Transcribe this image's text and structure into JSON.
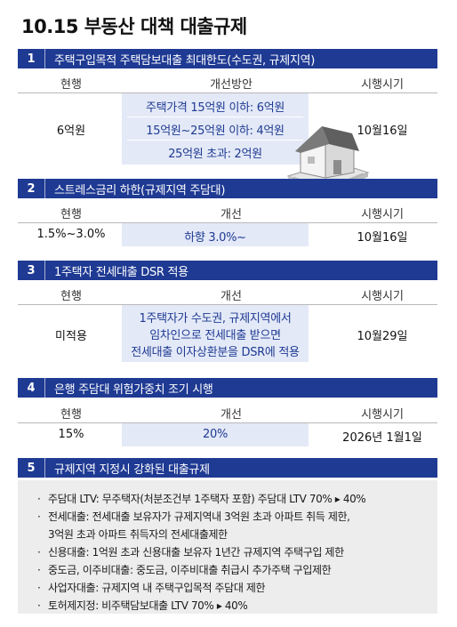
{
  "title": "10.15 부동산 대책 대출규제",
  "sections": [
    {
      "num": "1",
      "header": "주택구입목적 주택담보대출 최대한도(수도권, 규제지역)",
      "col_current": "현행",
      "col_plan": "개선방안",
      "col_date": "시행시기",
      "current": "6억원",
      "plan_lines": [
        "주택가격 15억원 이하: 6억원",
        "15억원~25억원 이하: 4억원",
        "25억원 초과: 2억원"
      ],
      "date": "10월16일"
    },
    {
      "num": "2",
      "header": "스트레스금리 하한(규제지역 주담대)",
      "col_current": "현행",
      "col_plan": "개선",
      "col_date": "시행시기",
      "current": "1.5%~3.0%",
      "plan": "하향 3.0%~",
      "date": "10월16일"
    },
    {
      "num": "3",
      "header": "1주택자 전세대출 DSR 적용",
      "col_current": "현행",
      "col_plan": "개선",
      "col_date": "시행시기",
      "current": "미적용",
      "plan_lines": [
        "1주택자가 수도권, 규제지역에서",
        "임차인으로 전세대출 받으면",
        "전세대출 이자상환분을 DSR에 적용"
      ],
      "date": "10월29일"
    },
    {
      "num": "4",
      "header": "은행 주담대 위험가중치 조기 시행",
      "col_current": "현행",
      "col_plan": "개선",
      "col_date": "시행시기",
      "current": "15%",
      "plan": "20%",
      "date": "2026년 1월1일"
    },
    {
      "num": "5",
      "header": "규제지역 지정시 강화된 대출규제",
      "items": [
        "주담대 LTV: 무주택자(처분조건부 1주택자 포함) 주담대 LTV 70% ▸ 40%",
        "전세대출: 전세대출 보유자가 규제지역내 3억원 초과 아파트 취득 제한,",
        "3억원 초과 아파트 취득자의 전세대출제한",
        "신용대출: 1억원 초과 신용대출 보유자 1년간 규제지역 주택구입 제한",
        "중도금, 이주비대출: 중도금, 이주비대출 취급시 추가주택 구입제한",
        "사업자대출: 규제지역 내 주택구입목적 주담대 제한",
        "토허제지정: 비주택담보대출 LTV 70% ▸ 40%"
      ]
    }
  ],
  "colors": {
    "header_bg": "#1f3a93",
    "highlight_bg": "#e3e9f7",
    "panel_bg": "#ededed"
  },
  "icons": {
    "illustration": "house-on-money-icon"
  }
}
